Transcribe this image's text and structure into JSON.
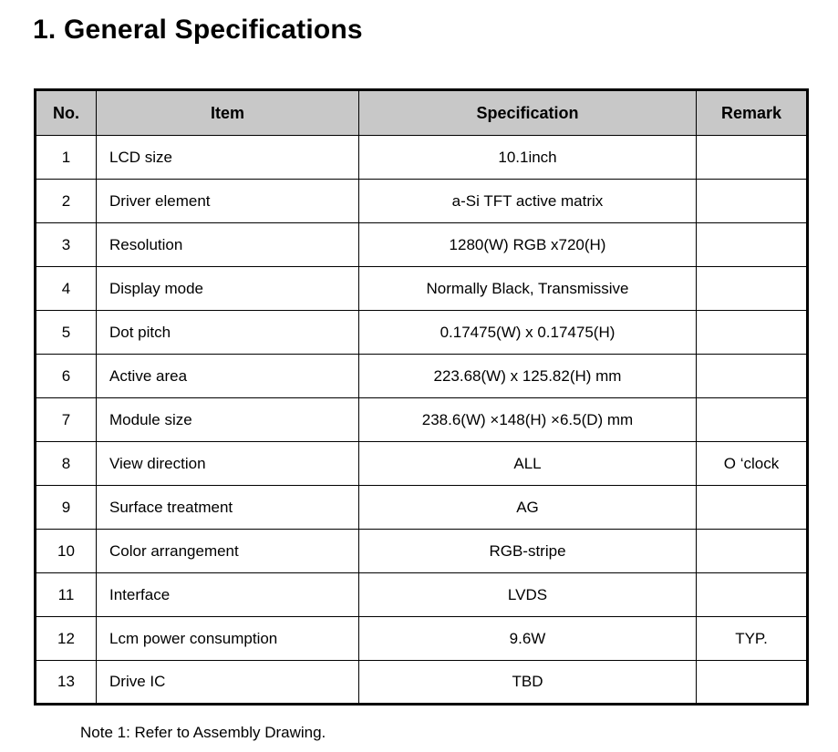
{
  "page": {
    "title": "1. General Specifications",
    "note": "Note 1: Refer to Assembly Drawing."
  },
  "colors": {
    "header_background": "#c8c8c8",
    "border": "#000000",
    "text": "#000000",
    "page_background": "#ffffff"
  },
  "table": {
    "headers": [
      "No.",
      "Item",
      "Specification",
      "Remark"
    ],
    "rows": [
      {
        "no": "1",
        "item": "LCD size",
        "spec": "10.1inch",
        "remark": ""
      },
      {
        "no": "2",
        "item": "Driver element",
        "spec": "a-Si TFT active matrix",
        "remark": ""
      },
      {
        "no": "3",
        "item": "Resolution",
        "spec": "1280(W) RGB x720(H)",
        "remark": ""
      },
      {
        "no": "4",
        "item": "Display mode",
        "spec": "Normally Black, Transmissive",
        "remark": ""
      },
      {
        "no": "5",
        "item": "Dot pitch",
        "spec": "0.17475(W) x 0.17475(H)",
        "remark": ""
      },
      {
        "no": "6",
        "item": "Active area",
        "spec": "223.68(W) x 125.82(H) mm",
        "remark": ""
      },
      {
        "no": "7",
        "item": "Module size",
        "spec": "238.6(W) ×148(H) ×6.5(D) mm",
        "remark": ""
      },
      {
        "no": "8",
        "item": "View direction",
        "spec": "ALL",
        "remark": "O ‘clock"
      },
      {
        "no": "9",
        "item": "Surface treatment",
        "spec": "AG",
        "remark": ""
      },
      {
        "no": "10",
        "item": "Color arrangement",
        "spec": "RGB-stripe",
        "remark": ""
      },
      {
        "no": "11",
        "item": "Interface",
        "spec": "LVDS",
        "remark": ""
      },
      {
        "no": "12",
        "item": "Lcm power consumption",
        "spec": "9.6W",
        "remark": "TYP."
      },
      {
        "no": "13",
        "item": "Drive IC",
        "spec": "TBD",
        "remark": ""
      }
    ]
  }
}
